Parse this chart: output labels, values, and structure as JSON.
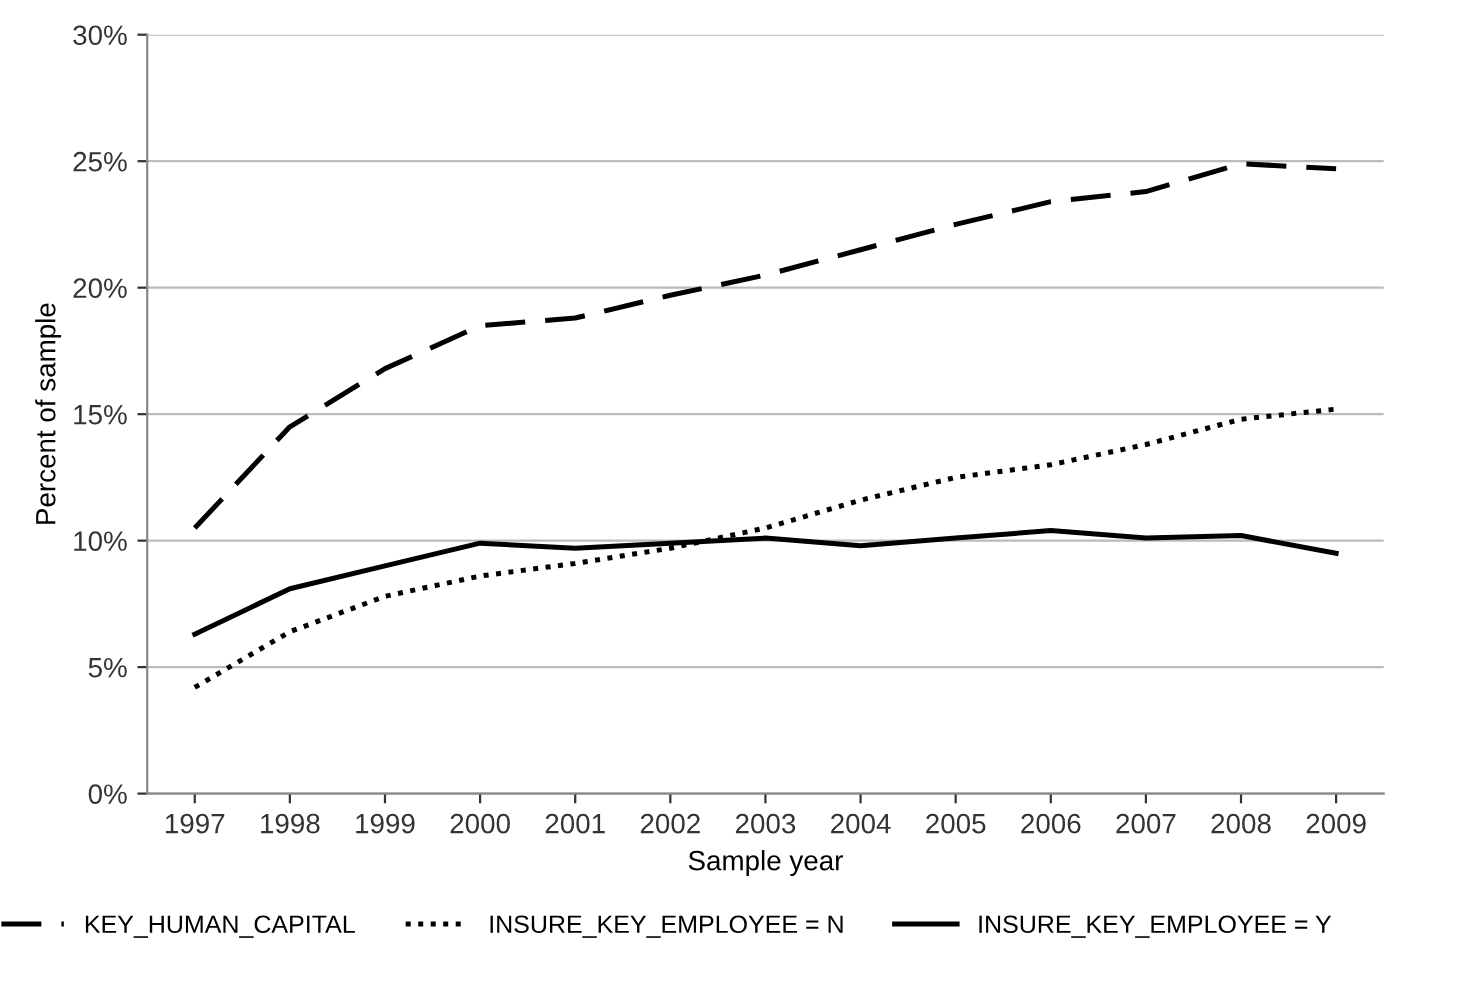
{
  "chart_data": {
    "type": "line",
    "xlabel": "Sample year",
    "ylabel": "Percent of sample",
    "categories": [
      "1997",
      "1998",
      "1999",
      "2000",
      "2001",
      "2002",
      "2003",
      "2004",
      "2005",
      "2006",
      "2007",
      "2008",
      "2009"
    ],
    "series": [
      {
        "name": "KEY_HUMAN_CAPITAL",
        "color": "#000000",
        "line_style": "dashed",
        "values": [
          10.5,
          14.5,
          16.8,
          18.5,
          18.8,
          19.7,
          20.5,
          21.5,
          22.5,
          23.4,
          23.8,
          24.9,
          24.7
        ]
      },
      {
        "name": "INSURE_KEY_EMPLOYEE = N",
        "color": "#000000",
        "line_style": "dotted",
        "values": [
          4.2,
          6.4,
          7.8,
          8.6,
          9.1,
          9.7,
          10.5,
          11.6,
          12.5,
          13.0,
          13.8,
          14.8,
          15.2
        ]
      },
      {
        "name": "INSURE_KEY_EMPLOYEE = Y",
        "color": "#000000",
        "line_style": "solid",
        "values": [
          6.3,
          8.1,
          9.0,
          9.9,
          9.7,
          9.9,
          10.1,
          9.8,
          10.1,
          10.4,
          10.1,
          10.2,
          9.5
        ]
      }
    ],
    "ylim": [
      0,
      30
    ],
    "yticks": [
      {
        "value": 0,
        "label": "0%"
      },
      {
        "value": 5,
        "label": "5%"
      },
      {
        "value": 10,
        "label": "10%"
      },
      {
        "value": 15,
        "label": "15%"
      },
      {
        "value": 20,
        "label": "20%"
      },
      {
        "value": 25,
        "label": "25%"
      },
      {
        "value": 30,
        "label": "30%"
      }
    ],
    "grid": "y",
    "legend": "bottom",
    "marker": "none"
  }
}
